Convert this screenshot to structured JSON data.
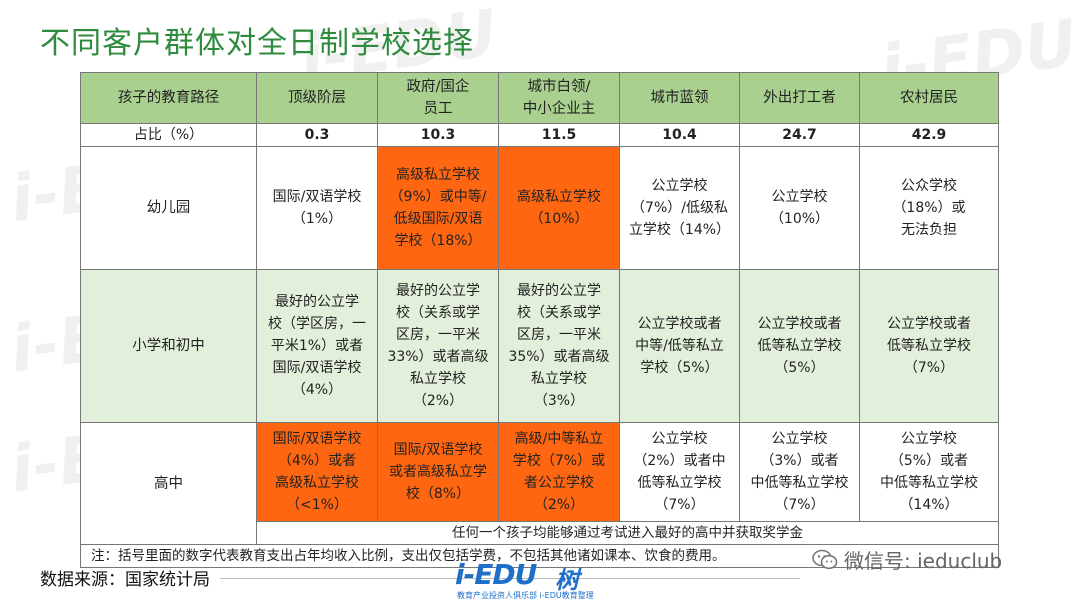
{
  "title": "不同客户群体对全日制学校选择",
  "table": {
    "headers": [
      "孩子的教育路径",
      "顶级阶层",
      "政府/国企\n员工",
      "城市白领/\n中小企业主",
      "城市蓝领",
      "外出打工者",
      "农村居民"
    ],
    "pct_row": {
      "label": "占比（%）",
      "values": [
        "0.3",
        "10.3",
        "11.5",
        "10.4",
        "24.7",
        "42.9"
      ]
    },
    "rows": [
      {
        "label": "幼儿园",
        "cells": [
          "国际/双语学校\n（1%）",
          "高级私立学校\n（9%）或中等/\n低级国际/双语\n学校（18%）",
          "高级私立学校\n（10%）",
          "公立学校\n（7%）/低级私\n立学校（14%）",
          "公立学校\n（10%）",
          "公众学校\n（18%）或\n无法负担"
        ]
      },
      {
        "label": "小学和初中",
        "cells": [
          "最好的公立学\n校（学区房，一\n平米1%）或者\n国际/双语学校\n（4%）",
          "最好的公立学\n校（关系或学\n区房，一平米\n33%）或者高级\n私立学校\n（2%）",
          "最好的公立学\n校（关系或学\n区房，一平米\n35%）或者高级\n私立学校\n（3%）",
          "公立学校或者\n中等/低等私立\n学校（5%）",
          "公立学校或者\n低等私立学校\n（5%）",
          "公立学校或者\n低等私立学校\n（7%）"
        ]
      },
      {
        "label": "高中",
        "cells": [
          "国际/双语学校\n（4%）或者\n高级私立学校\n（<1%）",
          "国际/双语学校\n或者高级私立学\n校（8%）",
          "高级/中等私立\n学校（7%）或\n者公立学校\n（2%）",
          "公立学校\n（2%）或者中\n低等私立学校\n（7%）",
          "公立学校\n（3%）或者\n中低等私立学校\n（7%）",
          "公立学校\n（5%）或者\n中低等私立学校\n（14%）"
        ]
      }
    ],
    "merged_note": "任何一个孩子均能够通过考试进入最好的高中并获取奖学金",
    "footnote": "注：括号里面的数字代表教育支出占年均收入比例，支出仅包括学费，不包括其他诸如课本、饮食的费用。"
  },
  "source": "数据来源：国家统计局",
  "logo": {
    "main": "i-EDU",
    "sub": "教育产业投资人俱乐部  i-EDU教育整理",
    "mark": "树"
  },
  "wechat": "微信号: ieduclub",
  "colors": {
    "accent_green": "#2e8b3e",
    "header_green": "#a9d08e",
    "row_green": "#e2efda",
    "highlight_orange": "#ff6611"
  }
}
